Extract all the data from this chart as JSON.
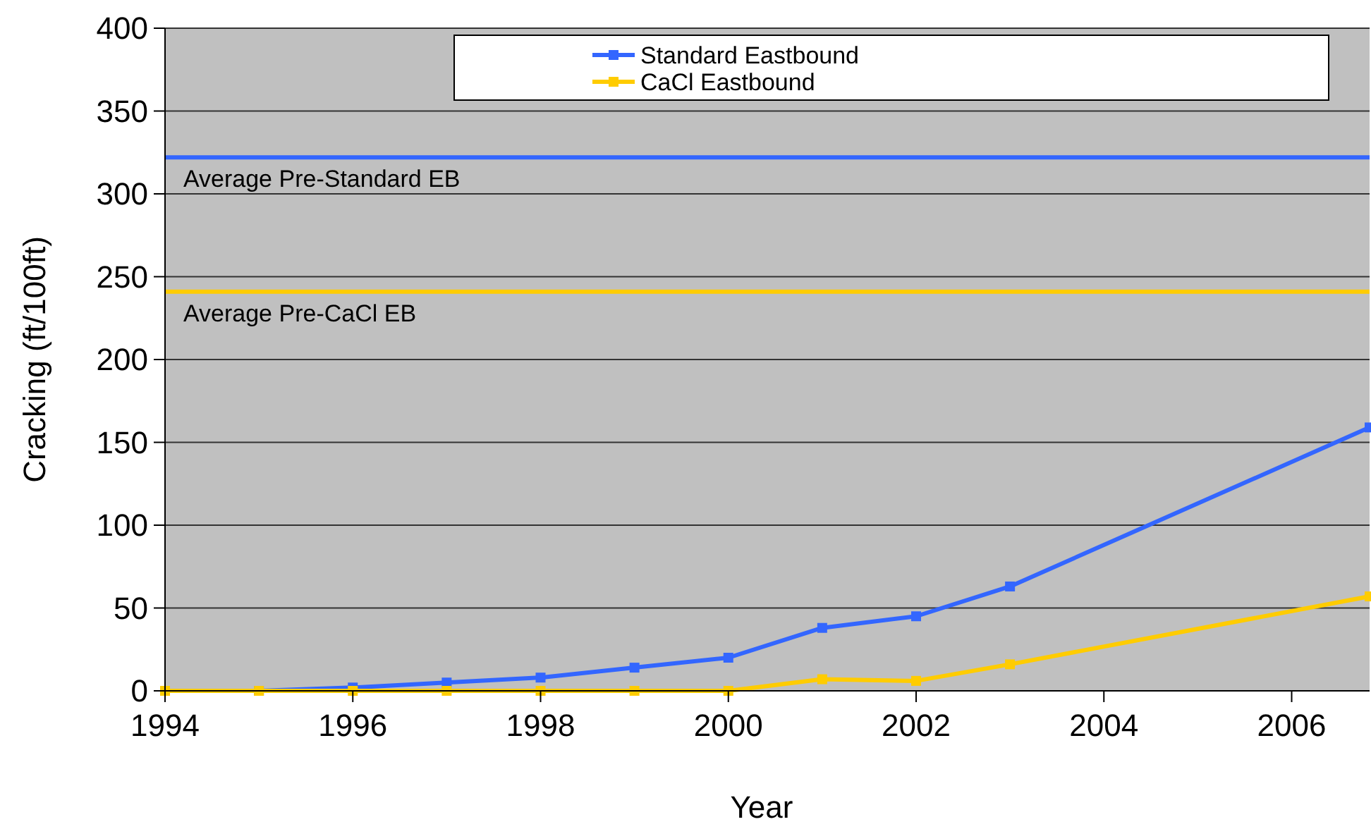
{
  "chart_data": {
    "type": "line",
    "xlabel": "Year",
    "ylabel": "Cracking (ft/100ft)",
    "xlim": [
      1994,
      2006.83
    ],
    "xticks": [
      1994,
      1996,
      1998,
      2000,
      2002,
      2004,
      2006
    ],
    "ylim": [
      0,
      400
    ],
    "yticks": [
      0,
      50,
      100,
      150,
      200,
      250,
      300,
      350,
      400
    ],
    "grid": "y",
    "legend": "top",
    "marker": "square",
    "series": [
      {
        "name": "Standard Eastbound",
        "color": "#3366ff",
        "x": [
          1994,
          1995,
          1996,
          1997,
          1998,
          1999,
          2000,
          2001,
          2002,
          2003,
          2006.83
        ],
        "values": [
          0,
          0,
          2,
          5,
          8,
          14,
          20,
          38,
          45,
          63,
          159
        ]
      },
      {
        "name": "CaCl Eastbound",
        "color": "#ffcc00",
        "x": [
          1994,
          1995,
          1996,
          1997,
          1998,
          1999,
          2000,
          2001,
          2002,
          2003,
          2006.83
        ],
        "values": [
          0,
          0,
          0,
          0,
          0,
          0,
          0,
          7,
          6,
          16,
          57
        ]
      }
    ],
    "ref_lines": [
      {
        "axis": "y",
        "value": 322,
        "label": "Average Pre-Standard EB",
        "color": "#3366ff"
      },
      {
        "axis": "y",
        "value": 241,
        "label": "Average Pre-CaCl EB",
        "color": "#ffcc00"
      }
    ]
  }
}
